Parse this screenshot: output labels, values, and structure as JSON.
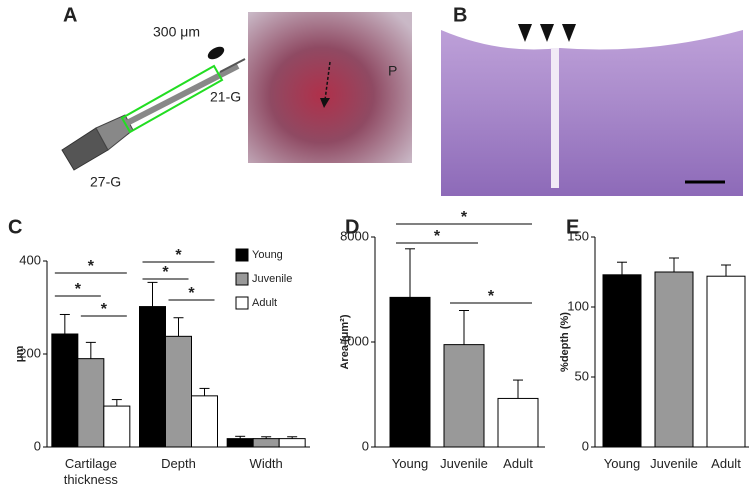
{
  "figure": {
    "panel_labels": [
      "A",
      "B",
      "C",
      "D",
      "E"
    ],
    "annotations": [
      "300 μm",
      "21-G",
      "27-G",
      "P"
    ]
  },
  "chart_data": [
    {
      "type": "bar",
      "ylabel": "μm",
      "categories": [
        "Cartilage thickness",
        "Depth",
        "Width"
      ],
      "series": [
        {
          "name": "Young",
          "color": "#000000",
          "values": [
            243,
            302,
            18
          ],
          "errors": [
            42,
            52,
            5
          ]
        },
        {
          "name": "Juvenile",
          "color": "#999999",
          "values": [
            190,
            238,
            18
          ],
          "errors": [
            35,
            40,
            4
          ]
        },
        {
          "name": "Adult",
          "color": "#ffffff",
          "values": [
            88,
            110,
            18
          ],
          "errors": [
            14,
            16,
            4
          ]
        }
      ],
      "ylim": [
        0,
        400
      ],
      "yticks": [
        0,
        200,
        400
      ],
      "annotations": [
        "*",
        "*",
        "*",
        "*",
        "*",
        "*"
      ]
    },
    {
      "type": "bar",
      "ylabel": "Area (μm²)",
      "categories": [
        "Young",
        "Juvenile",
        "Adult"
      ],
      "values": [
        5700,
        3900,
        1850
      ],
      "errors": [
        1850,
        1300,
        700
      ],
      "colors": [
        "#000000",
        "#999999",
        "#ffffff"
      ],
      "ylim": [
        0,
        8000
      ],
      "yticks": [
        0,
        4000,
        8000
      ],
      "annotations": [
        "*",
        "*",
        "*"
      ]
    },
    {
      "type": "bar",
      "ylabel": "%depth (%)",
      "categories": [
        "Young",
        "Juvenile",
        "Adult"
      ],
      "values": [
        123,
        125,
        122
      ],
      "errors": [
        9,
        10,
        8
      ],
      "colors": [
        "#000000",
        "#999999",
        "#ffffff"
      ],
      "ylim": [
        0,
        150
      ],
      "yticks": [
        0,
        50,
        100,
        150
      ]
    }
  ]
}
